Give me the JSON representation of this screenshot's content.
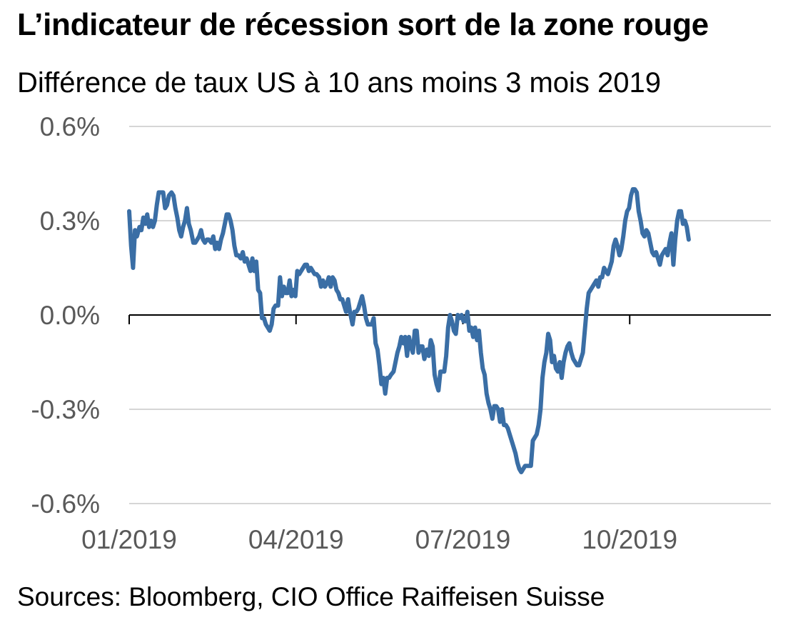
{
  "title": "L’indicateur de récession sort de la zone rouge",
  "subtitle": "Différence de taux US à 10 ans moins 3 mois 2019",
  "source": "Sources: Bloomberg, CIO Office Raiffeisen Suisse",
  "colors": {
    "series": "#3a6ea5",
    "grid": "#c8c8c8",
    "zero_line": "#000000",
    "tick_text": "#595959"
  },
  "chart_data": {
    "type": "line",
    "title": "L’indicateur de récession sort de la zone rouge",
    "subtitle": "Différence de taux US à 10 ans moins 3 mois 2019",
    "xlabel": "",
    "ylabel": "",
    "x_range": [
      0,
      1
    ],
    "ylim": [
      -0.6,
      0.6
    ],
    "y_ticks": [
      0.6,
      0.3,
      0.0,
      -0.3,
      -0.6
    ],
    "y_tick_labels": [
      "0.6%",
      "0.3%",
      "0.0%",
      "-0.3%",
      "-0.6%"
    ],
    "x_ticks": [
      0.0,
      0.26,
      0.52,
      0.78
    ],
    "x_tick_labels": [
      "01/2019",
      "04/2019",
      "07/2019",
      "10/2019"
    ],
    "grid": true,
    "legend": "none",
    "series": [
      {
        "values": [
          [
            0.0,
            0.33
          ],
          [
            0.003,
            0.22
          ],
          [
            0.006,
            0.15
          ],
          [
            0.009,
            0.27
          ],
          [
            0.012,
            0.25
          ],
          [
            0.016,
            0.28
          ],
          [
            0.019,
            0.27
          ],
          [
            0.022,
            0.31
          ],
          [
            0.025,
            0.29
          ],
          [
            0.028,
            0.32
          ],
          [
            0.031,
            0.28
          ],
          [
            0.034,
            0.3
          ],
          [
            0.037,
            0.28
          ],
          [
            0.04,
            0.3
          ],
          [
            0.043,
            0.35
          ],
          [
            0.046,
            0.39
          ],
          [
            0.05,
            0.39
          ],
          [
            0.053,
            0.39
          ],
          [
            0.056,
            0.34
          ],
          [
            0.059,
            0.35
          ],
          [
            0.062,
            0.38
          ],
          [
            0.066,
            0.39
          ],
          [
            0.069,
            0.38
          ],
          [
            0.072,
            0.34
          ],
          [
            0.075,
            0.31
          ],
          [
            0.078,
            0.27
          ],
          [
            0.081,
            0.25
          ],
          [
            0.084,
            0.28
          ],
          [
            0.087,
            0.3
          ],
          [
            0.09,
            0.34
          ],
          [
            0.093,
            0.29
          ],
          [
            0.096,
            0.27
          ],
          [
            0.1,
            0.23
          ],
          [
            0.103,
            0.23
          ],
          [
            0.106,
            0.24
          ],
          [
            0.109,
            0.25
          ],
          [
            0.112,
            0.27
          ],
          [
            0.115,
            0.24
          ],
          [
            0.118,
            0.23
          ],
          [
            0.121,
            0.24
          ],
          [
            0.124,
            0.24
          ],
          [
            0.128,
            0.23
          ],
          [
            0.131,
            0.25
          ],
          [
            0.134,
            0.21
          ],
          [
            0.137,
            0.23
          ],
          [
            0.14,
            0.21
          ],
          [
            0.143,
            0.24
          ],
          [
            0.146,
            0.26
          ],
          [
            0.149,
            0.29
          ],
          [
            0.152,
            0.32
          ],
          [
            0.155,
            0.32
          ],
          [
            0.158,
            0.3
          ],
          [
            0.161,
            0.27
          ],
          [
            0.164,
            0.22
          ],
          [
            0.167,
            0.19
          ],
          [
            0.17,
            0.19
          ],
          [
            0.174,
            0.18
          ],
          [
            0.177,
            0.2
          ],
          [
            0.18,
            0.17
          ],
          [
            0.183,
            0.18
          ],
          [
            0.186,
            0.16
          ],
          [
            0.189,
            0.14
          ],
          [
            0.192,
            0.18
          ],
          [
            0.195,
            0.14
          ],
          [
            0.198,
            0.17
          ],
          [
            0.201,
            0.08
          ],
          [
            0.204,
            0.07
          ],
          [
            0.207,
            -0.01
          ],
          [
            0.21,
            -0.01
          ],
          [
            0.213,
            -0.03
          ],
          [
            0.216,
            -0.04
          ],
          [
            0.219,
            -0.05
          ],
          [
            0.222,
            -0.03
          ],
          [
            0.225,
            0.02
          ],
          [
            0.228,
            0.03
          ],
          [
            0.232,
            0.03
          ],
          [
            0.235,
            0.12
          ],
          [
            0.238,
            0.06
          ],
          [
            0.241,
            0.09
          ],
          [
            0.244,
            0.07
          ],
          [
            0.247,
            0.07
          ],
          [
            0.25,
            0.11
          ],
          [
            0.253,
            0.06
          ],
          [
            0.256,
            0.08
          ],
          [
            0.259,
            0.06
          ],
          [
            0.262,
            0.14
          ],
          [
            0.265,
            0.13
          ],
          [
            0.268,
            0.14
          ],
          [
            0.271,
            0.15
          ],
          [
            0.274,
            0.16
          ],
          [
            0.277,
            0.16
          ],
          [
            0.28,
            0.14
          ],
          [
            0.283,
            0.15
          ],
          [
            0.286,
            0.14
          ],
          [
            0.289,
            0.13
          ],
          [
            0.292,
            0.13
          ],
          [
            0.296,
            0.12
          ],
          [
            0.299,
            0.09
          ],
          [
            0.302,
            0.11
          ],
          [
            0.305,
            0.09
          ],
          [
            0.308,
            0.1
          ],
          [
            0.311,
            0.12
          ],
          [
            0.314,
            0.09
          ],
          [
            0.317,
            0.12
          ],
          [
            0.32,
            0.11
          ],
          [
            0.323,
            0.08
          ],
          [
            0.326,
            0.07
          ],
          [
            0.329,
            0.05
          ],
          [
            0.332,
            0.05
          ],
          [
            0.335,
            0.03
          ],
          [
            0.338,
            0.01
          ],
          [
            0.341,
            0.05
          ],
          [
            0.344,
            0.01
          ],
          [
            0.348,
            -0.03
          ],
          [
            0.351,
            0.01
          ],
          [
            0.354,
            0.01
          ],
          [
            0.357,
            0.02
          ],
          [
            0.36,
            0.04
          ],
          [
            0.363,
            0.06
          ],
          [
            0.366,
            0.03
          ],
          [
            0.369,
            -0.01
          ],
          [
            0.372,
            -0.03
          ],
          [
            0.375,
            -0.03
          ],
          [
            0.378,
            -0.03
          ],
          [
            0.381,
            -0.01
          ],
          [
            0.384,
            -0.09
          ],
          [
            0.387,
            -0.11
          ],
          [
            0.39,
            -0.16
          ],
          [
            0.393,
            -0.22
          ],
          [
            0.396,
            -0.2
          ],
          [
            0.399,
            -0.25
          ],
          [
            0.402,
            -0.2
          ],
          [
            0.405,
            -0.2
          ],
          [
            0.408,
            -0.19
          ],
          [
            0.412,
            -0.18
          ],
          [
            0.415,
            -0.15
          ],
          [
            0.418,
            -0.12
          ],
          [
            0.421,
            -0.1
          ],
          [
            0.424,
            -0.07
          ],
          [
            0.427,
            -0.09
          ],
          [
            0.43,
            -0.07
          ],
          [
            0.433,
            -0.13
          ],
          [
            0.436,
            -0.07
          ],
          [
            0.439,
            -0.1
          ],
          [
            0.442,
            -0.12
          ],
          [
            0.445,
            -0.05
          ],
          [
            0.448,
            -0.05
          ],
          [
            0.451,
            -0.12
          ],
          [
            0.454,
            -0.1
          ],
          [
            0.457,
            -0.1
          ],
          [
            0.46,
            -0.14
          ],
          [
            0.464,
            -0.11
          ],
          [
            0.467,
            -0.13
          ],
          [
            0.47,
            -0.08
          ],
          [
            0.473,
            -0.1
          ],
          [
            0.476,
            -0.19
          ],
          [
            0.479,
            -0.22
          ],
          [
            0.482,
            -0.24
          ],
          [
            0.485,
            -0.18
          ],
          [
            0.488,
            -0.18
          ],
          [
            0.491,
            -0.18
          ],
          [
            0.494,
            -0.13
          ],
          [
            0.497,
            -0.04
          ],
          [
            0.5,
            0.0
          ],
          [
            0.503,
            -0.02
          ],
          [
            0.506,
            -0.05
          ],
          [
            0.509,
            -0.06
          ],
          [
            0.512,
            0.0
          ],
          [
            0.515,
            -0.01
          ],
          [
            0.518,
            0.0
          ],
          [
            0.521,
            -0.02
          ],
          [
            0.524,
            -0.02
          ],
          [
            0.527,
            0.01
          ],
          [
            0.53,
            -0.05
          ],
          [
            0.533,
            -0.04
          ],
          [
            0.536,
            -0.07
          ],
          [
            0.539,
            -0.04
          ],
          [
            0.542,
            -0.08
          ],
          [
            0.545,
            -0.05
          ],
          [
            0.548,
            -0.12
          ],
          [
            0.551,
            -0.17
          ],
          [
            0.554,
            -0.19
          ],
          [
            0.557,
            -0.25
          ],
          [
            0.56,
            -0.28
          ],
          [
            0.563,
            -0.3
          ],
          [
            0.566,
            -0.33
          ],
          [
            0.569,
            -0.29
          ],
          [
            0.572,
            -0.29
          ],
          [
            0.575,
            -0.3
          ],
          [
            0.578,
            -0.34
          ],
          [
            0.581,
            -0.3
          ],
          [
            0.584,
            -0.35
          ],
          [
            0.587,
            -0.35
          ],
          [
            0.59,
            -0.36
          ],
          [
            0.593,
            -0.38
          ],
          [
            0.596,
            -0.4
          ],
          [
            0.599,
            -0.42
          ],
          [
            0.602,
            -0.44
          ],
          [
            0.605,
            -0.47
          ],
          [
            0.608,
            -0.49
          ],
          [
            0.611,
            -0.5
          ],
          [
            0.614,
            -0.49
          ],
          [
            0.617,
            -0.48
          ],
          [
            0.62,
            -0.48
          ],
          [
            0.623,
            -0.48
          ],
          [
            0.626,
            -0.48
          ],
          [
            0.629,
            -0.4
          ],
          [
            0.632,
            -0.39
          ],
          [
            0.635,
            -0.38
          ],
          [
            0.638,
            -0.35
          ],
          [
            0.641,
            -0.3
          ],
          [
            0.644,
            -0.2
          ],
          [
            0.647,
            -0.15
          ],
          [
            0.65,
            -0.12
          ],
          [
            0.653,
            -0.06
          ],
          [
            0.656,
            -0.08
          ],
          [
            0.659,
            -0.15
          ],
          [
            0.662,
            -0.13
          ],
          [
            0.665,
            -0.17
          ],
          [
            0.668,
            -0.18
          ],
          [
            0.671,
            -0.15
          ],
          [
            0.674,
            -0.2
          ],
          [
            0.677,
            -0.15
          ],
          [
            0.68,
            -0.12
          ],
          [
            0.683,
            -0.1
          ],
          [
            0.686,
            -0.09
          ],
          [
            0.689,
            -0.12
          ],
          [
            0.692,
            -0.14
          ],
          [
            0.695,
            -0.15
          ],
          [
            0.698,
            -0.16
          ],
          [
            0.701,
            -0.16
          ],
          [
            0.704,
            -0.14
          ],
          [
            0.707,
            -0.12
          ],
          [
            0.71,
            -0.05
          ],
          [
            0.713,
            0.02
          ],
          [
            0.716,
            0.07
          ],
          [
            0.719,
            0.08
          ],
          [
            0.722,
            0.09
          ],
          [
            0.725,
            0.1
          ],
          [
            0.728,
            0.11
          ],
          [
            0.731,
            0.09
          ],
          [
            0.734,
            0.12
          ],
          [
            0.737,
            0.12
          ],
          [
            0.74,
            0.15
          ],
          [
            0.743,
            0.14
          ],
          [
            0.746,
            0.13
          ],
          [
            0.749,
            0.15
          ],
          [
            0.752,
            0.17
          ],
          [
            0.755,
            0.22
          ],
          [
            0.758,
            0.24
          ],
          [
            0.761,
            0.22
          ],
          [
            0.764,
            0.19
          ],
          [
            0.767,
            0.21
          ],
          [
            0.77,
            0.25
          ],
          [
            0.773,
            0.3
          ],
          [
            0.776,
            0.33
          ],
          [
            0.779,
            0.34
          ],
          [
            0.782,
            0.38
          ],
          [
            0.785,
            0.4
          ],
          [
            0.788,
            0.4
          ],
          [
            0.791,
            0.39
          ],
          [
            0.794,
            0.33
          ],
          [
            0.797,
            0.3
          ],
          [
            0.8,
            0.26
          ],
          [
            0.803,
            0.25
          ],
          [
            0.806,
            0.27
          ],
          [
            0.809,
            0.26
          ],
          [
            0.812,
            0.23
          ],
          [
            0.815,
            0.2
          ],
          [
            0.818,
            0.19
          ],
          [
            0.821,
            0.2
          ],
          [
            0.824,
            0.18
          ],
          [
            0.827,
            0.16
          ],
          [
            0.83,
            0.19
          ],
          [
            0.833,
            0.2
          ],
          [
            0.836,
            0.21
          ],
          [
            0.839,
            0.19
          ],
          [
            0.842,
            0.23
          ],
          [
            0.845,
            0.26
          ],
          [
            0.848,
            0.16
          ],
          [
            0.851,
            0.24
          ],
          [
            0.854,
            0.3
          ],
          [
            0.857,
            0.33
          ],
          [
            0.86,
            0.33
          ],
          [
            0.863,
            0.29
          ],
          [
            0.866,
            0.3
          ],
          [
            0.869,
            0.28
          ],
          [
            0.872,
            0.24
          ]
        ]
      }
    ]
  }
}
